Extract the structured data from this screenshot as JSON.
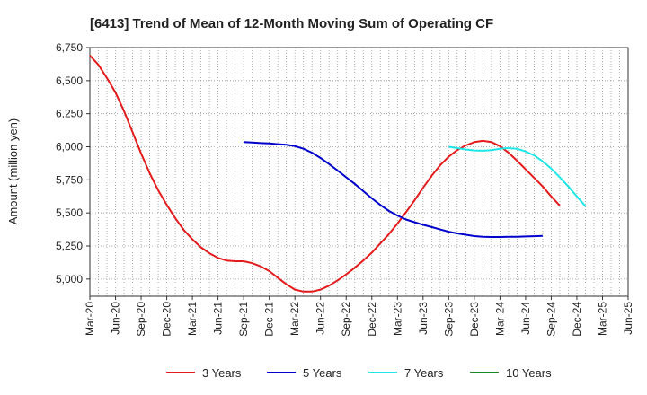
{
  "chart_data": {
    "type": "line",
    "title": "[6413]  Trend of Mean of 12-Month Moving Sum of Operating CF",
    "xlabel": "",
    "ylabel": "Amount (million yen)",
    "ylim": [
      4870,
      6750
    ],
    "y_ticks": [
      5000,
      5250,
      5500,
      5750,
      6000,
      6250,
      6500,
      6750
    ],
    "y_tick_labels": [
      "5,000",
      "5,250",
      "5,500",
      "5,750",
      "6,000",
      "6,250",
      "6,500",
      "6,750"
    ],
    "x_range": [
      "Mar-20",
      "Jun-25"
    ],
    "x_tick_labels": [
      "Mar-20",
      "Jun-20",
      "Sep-20",
      "Dec-20",
      "Mar-21",
      "Jun-21",
      "Sep-21",
      "Dec-21",
      "Mar-22",
      "Jun-22",
      "Sep-22",
      "Dec-22",
      "Mar-23",
      "Jun-23",
      "Sep-23",
      "Dec-23",
      "Mar-24",
      "Jun-24",
      "Sep-24",
      "Dec-24",
      "Mar-25",
      "Jun-25"
    ],
    "grid": true,
    "legend_position": "bottom",
    "series": [
      {
        "name": "3 Years",
        "color": "#e41a1c",
        "start": "Mar-20",
        "values": [
          6690,
          6620,
          6520,
          6410,
          6270,
          6110,
          5950,
          5800,
          5670,
          5560,
          5460,
          5370,
          5300,
          5240,
          5195,
          5160,
          5140,
          5135,
          5135,
          5120,
          5095,
          5060,
          5010,
          4960,
          4920,
          4905,
          4905,
          4920,
          4950,
          4990,
          5035,
          5085,
          5140,
          5200,
          5270,
          5340,
          5420,
          5505,
          5595,
          5690,
          5780,
          5860,
          5925,
          5975,
          6010,
          6035,
          6045,
          6035,
          6005,
          5955,
          5895,
          5830,
          5765,
          5700,
          5625,
          5555
        ]
      },
      {
        "name": "5 Years",
        "color": "#0000cd",
        "start": "Sep-21",
        "values": [
          6035,
          6032,
          6028,
          6025,
          6020,
          6015,
          6005,
          5985,
          5955,
          5915,
          5870,
          5820,
          5770,
          5720,
          5665,
          5610,
          5560,
          5515,
          5480,
          5450,
          5430,
          5410,
          5393,
          5375,
          5358,
          5345,
          5335,
          5325,
          5320,
          5318,
          5318,
          5319,
          5320,
          5322,
          5324,
          5327
        ]
      },
      {
        "name": "7 Years",
        "color": "#1ee6e6",
        "start": "Sep-23",
        "values": [
          6000,
          5990,
          5980,
          5972,
          5970,
          5975,
          5985,
          5990,
          5985,
          5965,
          5935,
          5890,
          5835,
          5770,
          5700,
          5625,
          5550
        ]
      },
      {
        "name": "10 Years",
        "color": "#228b22",
        "start": "Mar-25",
        "values": []
      }
    ]
  }
}
